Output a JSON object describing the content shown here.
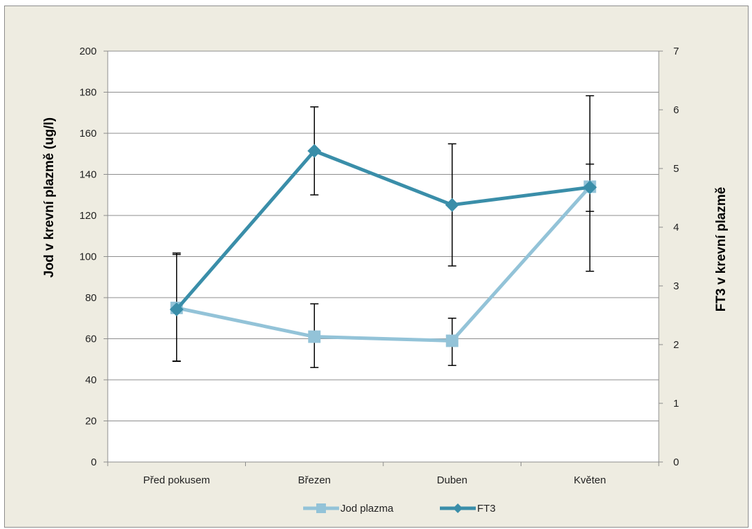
{
  "chart_data": {
    "type": "line",
    "categories": [
      "Před pokusem",
      "Březen",
      "Duben",
      "Květen"
    ],
    "ylabel": "Jod v krevní plazmě (ug/l)",
    "y2label": "FT3 v krevní plazmě",
    "ylim": [
      0,
      200
    ],
    "y2lim": [
      0,
      7
    ],
    "yticks": [
      0,
      20,
      40,
      60,
      80,
      100,
      120,
      140,
      160,
      180,
      200
    ],
    "y2ticks": [
      0,
      1,
      2,
      3,
      4,
      5,
      6,
      7
    ],
    "ytick_labels": [
      "0",
      "20",
      "40",
      "60",
      "80",
      "100",
      "120",
      "140",
      "160",
      "180",
      "200"
    ],
    "y2tick_labels": [
      "0",
      "1",
      "2",
      "3",
      "4",
      "5",
      "6",
      "7"
    ],
    "grid": true,
    "legend_position": "bottom",
    "series": [
      {
        "name": "Jod plazma",
        "axis": "left",
        "color": "#93c3d8",
        "marker": "square",
        "values": [
          75,
          61,
          59,
          134
        ],
        "error_low": [
          49,
          46,
          47,
          122
        ],
        "error_high": [
          101,
          77,
          70,
          145
        ]
      },
      {
        "name": "FT3",
        "axis": "right",
        "color": "#3a8ea9",
        "marker": "diamond",
        "values": [
          2.6,
          5.3,
          4.38,
          4.68
        ],
        "error_low": [
          1.72,
          4.55,
          3.34,
          3.25
        ],
        "error_high": [
          3.56,
          6.05,
          5.42,
          6.24
        ]
      }
    ]
  }
}
